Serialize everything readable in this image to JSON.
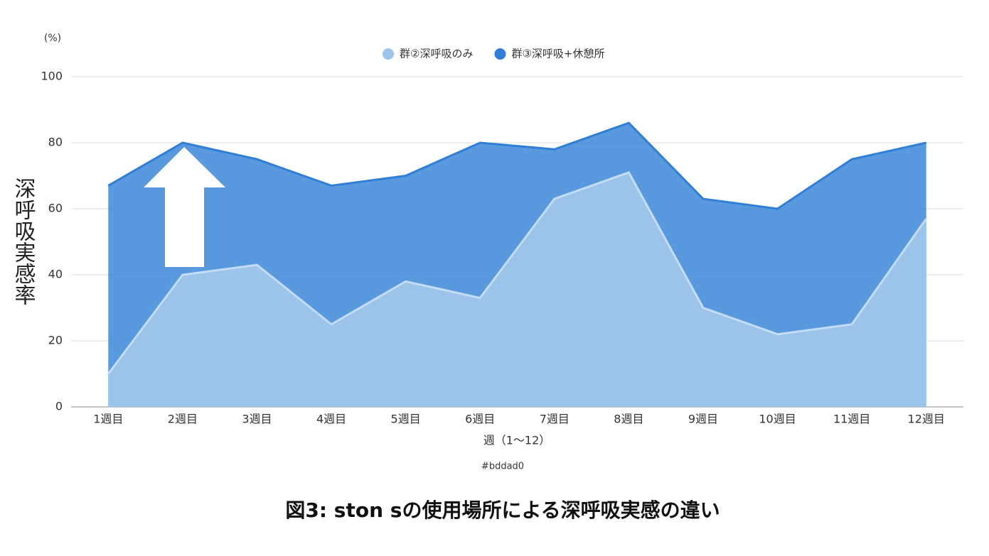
{
  "chart_data": {
    "type": "area",
    "title": "図3: ston sの使用場所による深呼吸実感の違い",
    "y_unit": "(%)",
    "y_label": "深呼吸実感率",
    "x_label": "週（1〜12）",
    "note": "#bddad0",
    "categories": [
      "1週目",
      "2週目",
      "3週目",
      "4週目",
      "5週目",
      "6週目",
      "7週目",
      "8週目",
      "9週目",
      "10週目",
      "11週目",
      "12週目"
    ],
    "series": [
      {
        "name": "群③深呼吸+休憩所",
        "color": "#2f7fd6",
        "values": [
          67,
          80,
          75,
          67,
          70,
          80,
          78,
          86,
          63,
          60,
          75,
          80
        ]
      },
      {
        "name": "群②深呼吸のみ",
        "color": "#9cc3ea",
        "values": [
          10,
          40,
          43,
          25,
          38,
          33,
          63,
          71,
          30,
          22,
          25,
          57
        ]
      }
    ],
    "legend_order": [
      1,
      0
    ],
    "ylim": [
      0,
      100
    ],
    "yticks": [
      0,
      20,
      40,
      60,
      80,
      100
    ],
    "grid": true
  }
}
